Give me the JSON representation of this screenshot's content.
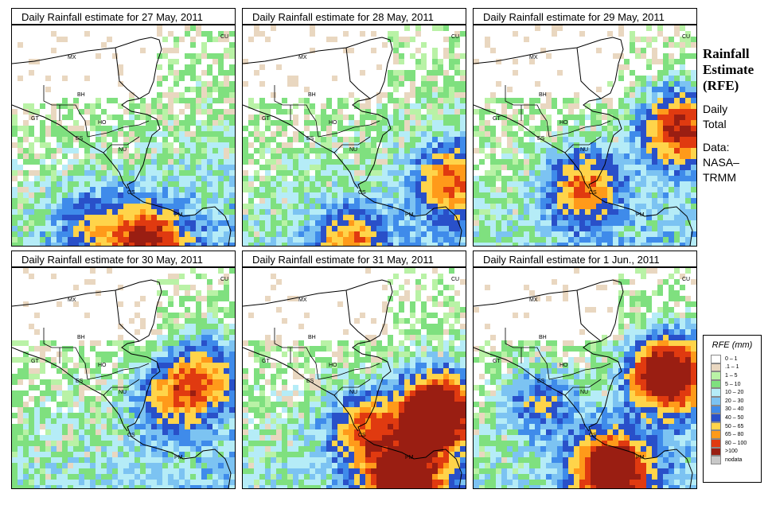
{
  "panels": [
    {
      "title": "Daily Rainfall estimate for  27 May, 2011",
      "seed": 27,
      "heavy": [
        [
          170,
          268,
          1.2
        ],
        [
          100,
          250,
          0.6
        ]
      ]
    },
    {
      "title": "Daily Rainfall estimate for  28 May, 2011",
      "seed": 28,
      "heavy": [
        [
          260,
          190,
          1.0
        ],
        [
          130,
          270,
          0.8
        ]
      ]
    },
    {
      "title": "Daily Rainfall estimate for  29 May, 2011",
      "seed": 29,
      "heavy": [
        [
          255,
          125,
          1.4
        ],
        [
          135,
          200,
          1.0
        ]
      ]
    },
    {
      "title": "Daily Rainfall estimate for  30 May, 2011",
      "seed": 30,
      "heavy": [
        [
          200,
          160,
          0.8
        ],
        [
          240,
          130,
          0.8
        ]
      ]
    },
    {
      "title": "Daily Rainfall estimate for  31 May, 2011",
      "seed": 31,
      "heavy": [
        [
          240,
          180,
          2.2
        ],
        [
          200,
          265,
          1.8
        ],
        [
          150,
          200,
          1.0
        ]
      ]
    },
    {
      "title": "Daily Rainfall estimate for  1 Jun., 2011",
      "seed": 1,
      "heavy": [
        [
          240,
          130,
          2.0
        ],
        [
          170,
          250,
          1.8
        ],
        [
          80,
          165,
          0.6
        ]
      ]
    }
  ],
  "country_labels": [
    "MX",
    "BH",
    "GT",
    "HO",
    "ES",
    "NU",
    "CS",
    "PM",
    "CU"
  ],
  "side": {
    "title_line1": "Rainfall",
    "title_line2": "Estimate",
    "title_line3": "(RFE)",
    "line1": "Daily",
    "line2": "Total",
    "line3": "Data:",
    "line4": "NASA–",
    "line5": "TRMM"
  },
  "legend": {
    "title": "RFE (mm)",
    "items": [
      {
        "label": "0 – 1",
        "color": "#ffffff"
      },
      {
        "label": ".1 – 1",
        "color": "#e9d7c0"
      },
      {
        "label": "1 – 5",
        "color": "#b9f2a6"
      },
      {
        "label": "5 – 10",
        "color": "#7fe07f"
      },
      {
        "label": "10 – 20",
        "color": "#b5ecf7"
      },
      {
        "label": "20 – 30",
        "color": "#7cc3f2"
      },
      {
        "label": "30 – 40",
        "color": "#3f8bea"
      },
      {
        "label": "40 – 50",
        "color": "#2950c9"
      },
      {
        "label": "50 – 65",
        "color": "#ffd44a"
      },
      {
        "label": "65 – 80",
        "color": "#ff9a1a"
      },
      {
        "label": "80 – 100",
        "color": "#e03a10"
      },
      {
        "label": ">100",
        "color": "#9a1e12"
      },
      {
        "label": "nodata",
        "color": "#c8c8c8"
      }
    ]
  }
}
